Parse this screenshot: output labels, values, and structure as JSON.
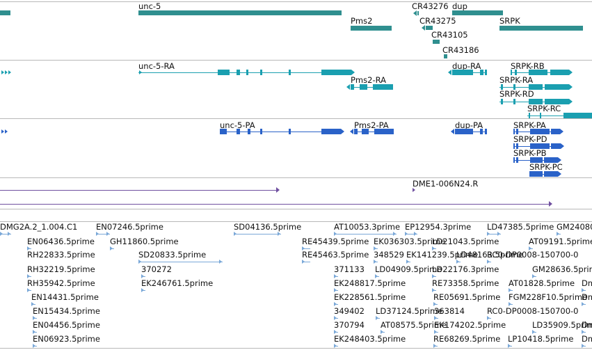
{
  "tracks": {
    "genes": {
      "color": "#2f8f8f",
      "features": [
        {
          "id": "left-edge",
          "label": ""
        },
        {
          "id": "unc-5",
          "label": "unc-5"
        },
        {
          "id": "pms2",
          "label": "Pms2"
        },
        {
          "id": "cr43276",
          "label": "CR43276"
        },
        {
          "id": "dup",
          "label": "dup"
        },
        {
          "id": "cr43275",
          "label": "CR43275"
        },
        {
          "id": "cr43105",
          "label": "CR43105"
        },
        {
          "id": "cr43186",
          "label": "CR43186"
        },
        {
          "id": "srpk",
          "label": "SRPK"
        }
      ]
    },
    "transcripts": {
      "color": "#1a9fb0",
      "features": [
        {
          "id": "left-edge",
          "label": ""
        },
        {
          "id": "unc-5-ra",
          "label": "unc-5-RA"
        },
        {
          "id": "pms2-ra",
          "label": "Pms2-RA"
        },
        {
          "id": "dup-ra",
          "label": "dup-RA"
        },
        {
          "id": "srpk-rb",
          "label": "SRPK-RB"
        },
        {
          "id": "srpk-ra",
          "label": "SRPK-RA"
        },
        {
          "id": "srpk-rd",
          "label": "SRPK-RD"
        },
        {
          "id": "srpk-rc",
          "label": "SRPK-RC"
        }
      ]
    },
    "proteins": {
      "color": "#2a62c8",
      "features": [
        {
          "id": "left-edge",
          "label": ""
        },
        {
          "id": "unc-5-pa",
          "label": "unc-5-PA"
        },
        {
          "id": "pms2-pa",
          "label": "Pms2-PA"
        },
        {
          "id": "dup-pa",
          "label": "dup-PA"
        },
        {
          "id": "srpk-pa",
          "label": "SRPK-PA"
        },
        {
          "id": "srpk-pd",
          "label": "SRPK-PD"
        },
        {
          "id": "srpk-pb",
          "label": "SRPK-PB"
        },
        {
          "id": "srpk-pc",
          "label": "SRPK-PC"
        }
      ]
    },
    "clones": {
      "color": "#7050a0",
      "features": [
        {
          "id": "line-1",
          "label": ""
        },
        {
          "id": "dme1-006n24r",
          "label": "DME1-006N24.R"
        },
        {
          "id": "line-2",
          "label": ""
        }
      ]
    },
    "ests": {
      "color": "#7aa8d8",
      "labels": [
        "DMG2A.2_1.004.C1",
        "EN07246.5prime",
        "SD04136.5prime",
        "AT10053.3prime",
        "EP12954.3prime",
        "LD47385.5prime",
        "GM24080",
        "EN06436.5prime",
        "GH11860.5prime",
        "RE45439.5prime",
        "EK036303.5prime",
        "LD21043.5prime",
        "AT09191.5prime",
        "RH22833.5prime",
        "SD20833.5prime",
        "RE45463.5prime",
        "348529",
        "EK141239.5prime",
        "LD48163.5prime",
        "RC0-DP0008-150700-0",
        "RH32219.5prime",
        "370272",
        "371133",
        "LD04909.5prime",
        "LD22176.3prime",
        "GM28636.5prime",
        "RH35942.5prime",
        "EK246761.5prime",
        "EK248817.5prime",
        "RE73358.5prime",
        "AT01828.5prime",
        "Dm",
        "EN14431.5prime",
        "EK228561.5prime",
        "RE05691.5prime",
        "FGM228F10.5prime",
        "Dm",
        "EN15434.5prime",
        "349402",
        "LD37124.5prime",
        "363814",
        "RC0-DP0008-150700-0",
        "EN04456.5prime",
        "370794",
        "AT08575.5prime",
        "EK174202.5prime",
        "LD35909.5prime",
        "Dm",
        "EN06923.5prime",
        "EK248403.5prime",
        "RE68269.5prime",
        "LP10418.5prime",
        "Dm"
      ]
    }
  }
}
